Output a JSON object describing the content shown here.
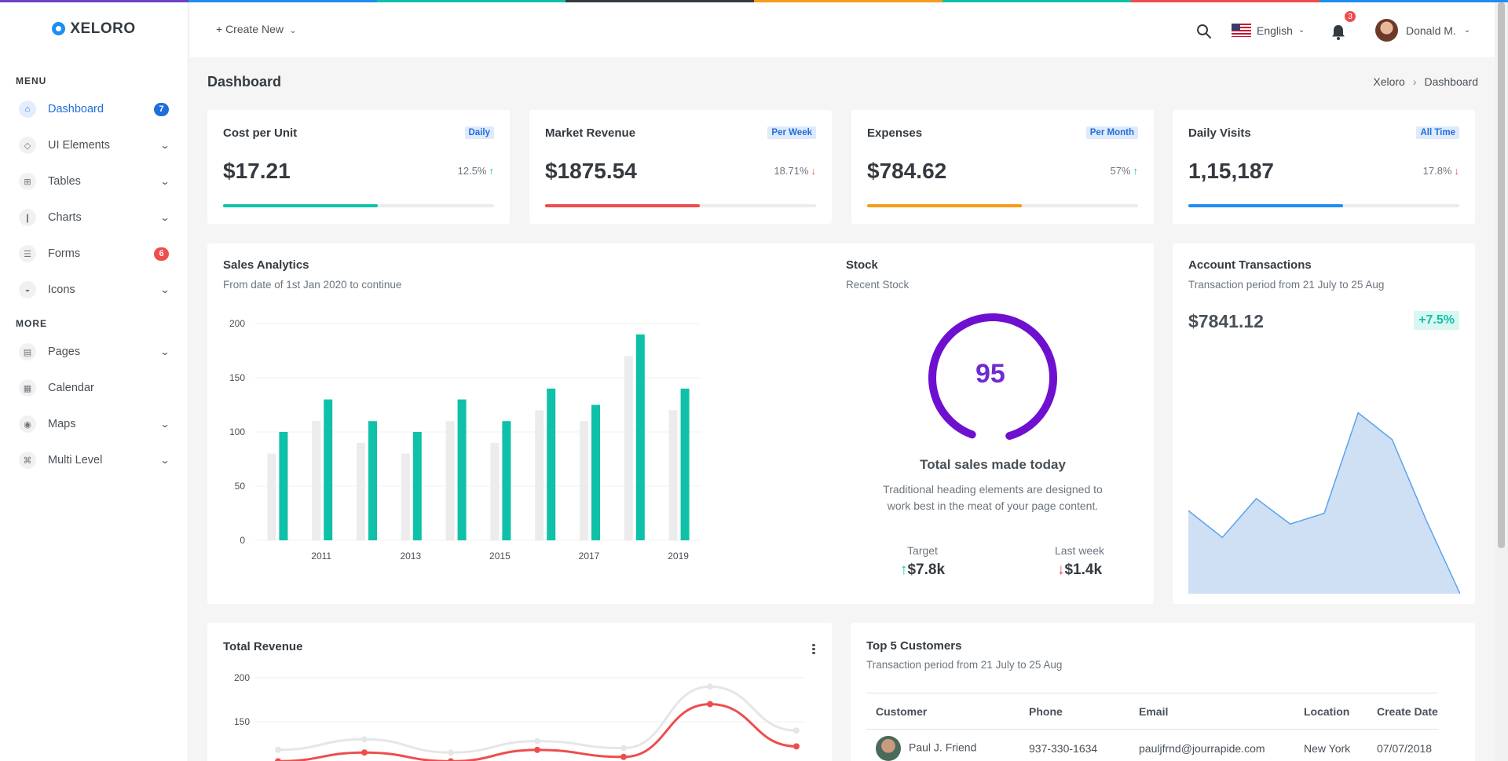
{
  "topstrip_colors": [
    "#6f42c1",
    "#1f8ef1",
    "#0fc1a8",
    "#343a40",
    "#f59c1a",
    "#0fc1a8",
    "#ee4d4d",
    "#1f8ef1"
  ],
  "brand": {
    "name": "XELORO"
  },
  "sidebar": {
    "menu_title": "MENU",
    "more_title": "MORE",
    "items": [
      {
        "label": "Dashboard",
        "icon": "home-icon",
        "badge": "7",
        "badge_color": "#1f6fdb",
        "active": true
      },
      {
        "label": "UI Elements",
        "icon": "diamond-icon",
        "chevron": true
      },
      {
        "label": "Tables",
        "icon": "table-icon",
        "chevron": true
      },
      {
        "label": "Charts",
        "icon": "bar-chart-icon",
        "chevron": true
      },
      {
        "label": "Forms",
        "icon": "list-icon",
        "badge": "6",
        "badge_color": "#ee4d4d"
      },
      {
        "label": "Icons",
        "icon": "circle-half-icon",
        "chevron": true
      }
    ],
    "more_items": [
      {
        "label": "Pages",
        "icon": "page-icon",
        "chevron": true
      },
      {
        "label": "Calendar",
        "icon": "calendar-icon"
      },
      {
        "label": "Maps",
        "icon": "map-pin-icon",
        "chevron": true
      },
      {
        "label": "Multi Level",
        "icon": "share-icon",
        "chevron": true
      }
    ]
  },
  "header": {
    "create_new": "+ Create New",
    "language": "English",
    "notifications_count": "3",
    "user_name": "Donald M."
  },
  "page": {
    "title": "Dashboard",
    "breadcrumb": [
      "Xeloro",
      "Dashboard"
    ]
  },
  "kpis": [
    {
      "title": "Cost per Unit",
      "badge": "Daily",
      "value": "$17.21",
      "change": "12.5%",
      "direction": "up",
      "progress": 0.57,
      "color": "#0fc1a8"
    },
    {
      "title": "Market Revenue",
      "badge": "Per Week",
      "value": "$1875.54",
      "change": "18.71%",
      "direction": "down",
      "progress": 0.57,
      "color": "#ee4d4d"
    },
    {
      "title": "Expenses",
      "badge": "Per Month",
      "value": "$784.62",
      "change": "57%",
      "direction": "up",
      "progress": 0.57,
      "color": "#f59c1a"
    },
    {
      "title": "Daily Visits",
      "badge": "All Time",
      "value": "1,15,187",
      "change": "17.8%",
      "direction": "down",
      "progress": 0.57,
      "color": "#1f8ef1"
    }
  ],
  "sales": {
    "title": "Sales Analytics",
    "subtitle": "From date of 1st Jan 2020 to continue"
  },
  "stock": {
    "title": "Stock",
    "subtitle": "Recent Stock",
    "gauge_value": "95",
    "gauge_fraction": 0.9,
    "headline": "Total sales made today",
    "description": "Traditional heading elements are designed to work best in the meat of your page content.",
    "target_label": "Target",
    "target_value": "$7.8k",
    "lastweek_label": "Last week",
    "lastweek_value": "$1.4k"
  },
  "account": {
    "title": "Account Transactions",
    "subtitle": "Transaction period from 21 July to 25 Aug",
    "amount": "$7841.12",
    "change": "+7.5%"
  },
  "revenue": {
    "title": "Total Revenue"
  },
  "customers": {
    "title": "Top 5 Customers",
    "subtitle": "Transaction period from 21 July to 25 Aug",
    "columns": [
      "Customer",
      "Phone",
      "Email",
      "Location",
      "Create Date"
    ],
    "rows": [
      {
        "name": "Paul J. Friend",
        "phone": "937-330-1634",
        "email": "pauljfrnd@jourrapide.com",
        "location": "New York",
        "date": "07/07/2018"
      }
    ]
  },
  "chart_data": [
    {
      "type": "bar",
      "ylim": [
        0,
        200
      ],
      "yticks": [
        0,
        50,
        100,
        150,
        200
      ],
      "xtick_labels": [
        "2011",
        "2013",
        "2015",
        "2017",
        "2019"
      ],
      "categories": [
        "2010",
        "2011",
        "2012",
        "2013",
        "2014",
        "2015",
        "2016",
        "2017",
        "2018",
        "2019"
      ],
      "series": [
        {
          "color": "#ececec",
          "values": [
            80,
            110,
            90,
            80,
            110,
            90,
            120,
            110,
            170,
            120
          ]
        },
        {
          "color": "#0fc1a8",
          "values": [
            100,
            130,
            110,
            100,
            130,
            110,
            140,
            125,
            190,
            140
          ]
        }
      ]
    },
    {
      "type": "area",
      "color": "#1f8ef1",
      "values": [
        62,
        42,
        71,
        52,
        60,
        135,
        115,
        55,
        0
      ]
    },
    {
      "type": "line",
      "ylim": [
        100,
        200
      ],
      "yticks": [
        150,
        200
      ],
      "series": [
        {
          "color": "#e6e6e6",
          "values": [
            118,
            130,
            115,
            128,
            120,
            190,
            140
          ]
        },
        {
          "color": "#ee4d4d",
          "values": [
            105,
            115,
            105,
            118,
            110,
            170,
            122
          ]
        }
      ]
    }
  ]
}
